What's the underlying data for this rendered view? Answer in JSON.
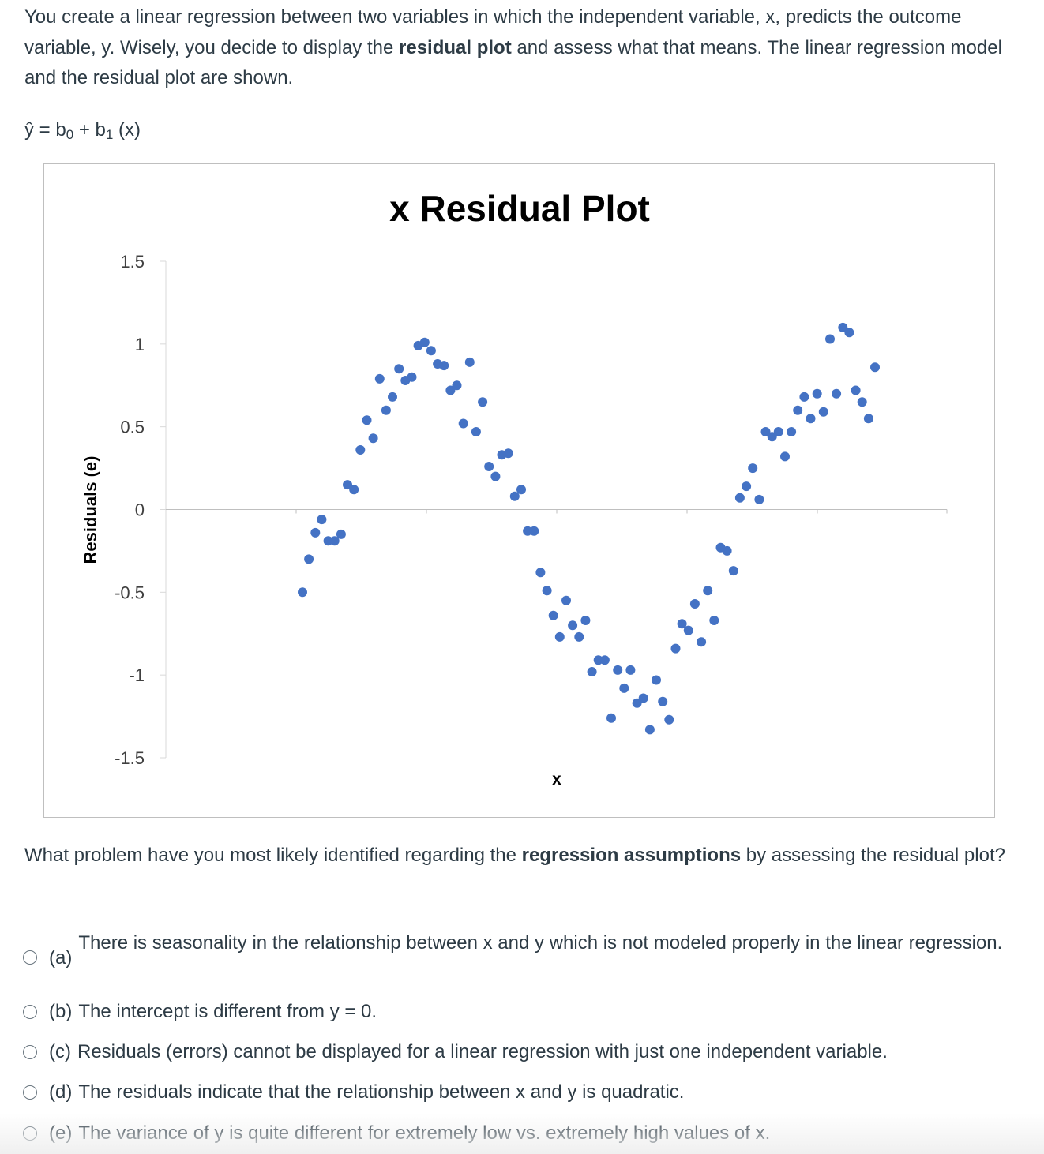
{
  "question": {
    "intro_part1": "You create a linear regression between two variables in which the independent variable, x, predicts the outcome variable, y. Wisely, you decide to display the ",
    "intro_bold1": "residual plot",
    "intro_part2": " and assess what that means. The linear regression model and the residual plot are shown.",
    "equation": {
      "yhat": "ŷ",
      "equals": " = ",
      "b": "b",
      "sub0": "0",
      "plus": " + ",
      "sub1": "1",
      "x": " (x)"
    },
    "prompt_part1": "What problem have you most likely identified regarding the ",
    "prompt_bold": "regression assumptions",
    "prompt_part2": " by assessing the residual plot?"
  },
  "options": [
    {
      "letter": "(a)",
      "text": "There is seasonality in the relationship between x and y which is not modeled properly in the linear regression."
    },
    {
      "letter": "(b)",
      "text": "The intercept is different from y = 0."
    },
    {
      "letter": "(c)",
      "text": "Residuals (errors) cannot be displayed for a linear regression with just one independent variable."
    },
    {
      "letter": "(d)",
      "text": "The residuals indicate that the relationship between x and y is quadratic."
    },
    {
      "letter": "(e)",
      "text": "The variance of y is quite different for extremely low vs. extremely high values of x."
    }
  ],
  "chart_data": {
    "type": "scatter",
    "title": "x  Residual Plot",
    "xlabel": "x",
    "ylabel": "Residuals (e)",
    "ylim": [
      -1.5,
      1.5
    ],
    "yticks": [
      "1.5",
      "1",
      "0.5",
      "0",
      "-0.5",
      "-1",
      "-1.5"
    ],
    "x_note": "x values are not printed on the chart; points are listed by index in increasing x order",
    "point_color": "#4472c4",
    "residuals": [
      -0.5,
      -0.3,
      -0.14,
      -0.06,
      -0.19,
      -0.19,
      -0.15,
      0.15,
      0.12,
      0.36,
      0.54,
      0.43,
      0.79,
      0.6,
      0.68,
      0.85,
      0.78,
      0.8,
      0.99,
      1.01,
      0.96,
      0.88,
      0.87,
      0.72,
      0.75,
      0.52,
      0.89,
      0.47,
      0.65,
      0.26,
      0.2,
      0.33,
      0.34,
      0.08,
      0.12,
      -0.13,
      -0.13,
      -0.38,
      -0.49,
      -0.64,
      -0.77,
      -0.55,
      -0.7,
      -0.77,
      -0.67,
      -0.98,
      -0.91,
      -0.91,
      -1.26,
      -0.97,
      -1.08,
      -0.97,
      -1.17,
      -1.14,
      -1.33,
      -1.03,
      -1.16,
      -1.27,
      -0.84,
      -0.69,
      -0.73,
      -0.57,
      -0.8,
      -0.49,
      -0.67,
      -0.23,
      -0.25,
      -0.37,
      0.07,
      0.14,
      0.25,
      0.06,
      0.47,
      0.44,
      0.47,
      0.32,
      0.47,
      0.6,
      0.68,
      0.55,
      0.7,
      0.59,
      1.03,
      0.7,
      1.1,
      1.07,
      0.72,
      0.65,
      0.55,
      0.86
    ]
  }
}
